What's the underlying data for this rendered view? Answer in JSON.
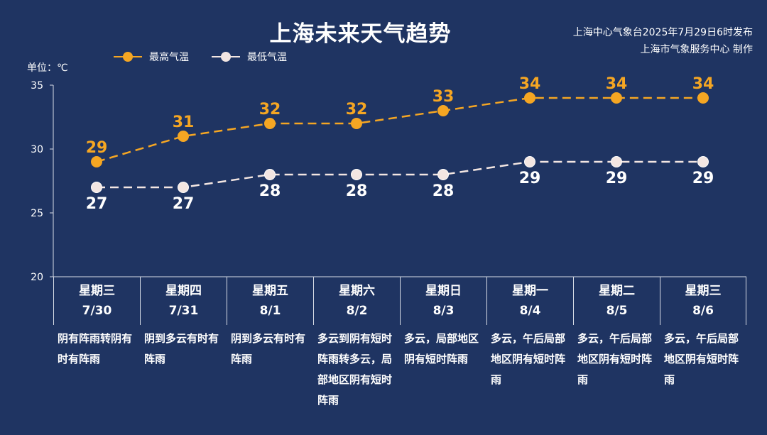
{
  "title": "上海未来天气趋势",
  "publisher": {
    "line1": "上海中心气象台2025年7月29日6时发布",
    "line2": "上海市气象服务中心 制作"
  },
  "unit": "单位：℃",
  "colors": {
    "high": "#f5a623",
    "low": "#f3e6e2",
    "background": "#1f3462"
  },
  "chart_data": {
    "type": "line",
    "categories": [
      "7/30",
      "7/31",
      "8/1",
      "8/2",
      "8/3",
      "8/4",
      "8/5",
      "8/6"
    ],
    "series": [
      {
        "name": "最高气温",
        "values": [
          29,
          31,
          32,
          32,
          33,
          34,
          34,
          34
        ]
      },
      {
        "name": "最低气温",
        "values": [
          27,
          27,
          28,
          28,
          28,
          29,
          29,
          29
        ]
      }
    ],
    "ylim": [
      20,
      35
    ],
    "yticks": [
      20,
      25,
      30,
      35
    ],
    "line_style": "dashed",
    "data_labels": true,
    "legend_placement": "top-left"
  },
  "days": [
    {
      "weekday": "星期三",
      "date": "7/30",
      "weather": "阴有阵雨转阴有时有阵雨"
    },
    {
      "weekday": "星期四",
      "date": "7/31",
      "weather": "阴到多云有时有阵雨"
    },
    {
      "weekday": "星期五",
      "date": "8/1",
      "weather": "阴到多云有时有阵雨"
    },
    {
      "weekday": "星期六",
      "date": "8/2",
      "weather": "多云到阴有短时阵雨转多云，局部地区阴有短时阵雨"
    },
    {
      "weekday": "星期日",
      "date": "8/3",
      "weather": "多云，局部地区阴有短时阵雨"
    },
    {
      "weekday": "星期一",
      "date": "8/4",
      "weather": "多云，午后局部地区阴有短时阵雨"
    },
    {
      "weekday": "星期二",
      "date": "8/5",
      "weather": "多云，午后局部地区阴有短时阵雨"
    },
    {
      "weekday": "星期三",
      "date": "8/6",
      "weather": "多云，午后局部地区阴有短时阵雨"
    }
  ]
}
